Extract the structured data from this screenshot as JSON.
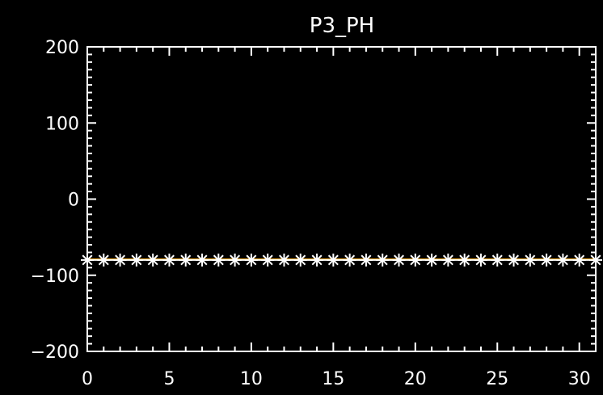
{
  "chart_data": {
    "type": "line",
    "title": "P3_PH",
    "xlabel": "",
    "ylabel": "",
    "xlim": [
      0,
      31
    ],
    "ylim": [
      -200,
      200
    ],
    "x_ticks": [
      0,
      5,
      10,
      15,
      20,
      25,
      30
    ],
    "x_tick_labels": [
      "0",
      "5",
      "10",
      "15",
      "20",
      "25",
      "30"
    ],
    "y_ticks": [
      -200,
      -100,
      0,
      100,
      200
    ],
    "y_tick_labels": [
      "−200",
      "−100",
      "0",
      "100",
      "200"
    ],
    "grid": false,
    "series": [
      {
        "marker": "asterisk",
        "color": "#ffffff",
        "x": [
          0,
          1,
          2,
          3,
          4,
          5,
          6,
          7,
          8,
          9,
          10,
          11,
          12,
          13,
          14,
          15,
          16,
          17,
          18,
          19,
          20,
          21,
          22,
          23,
          24,
          25,
          26,
          27,
          28,
          29,
          30,
          31
        ],
        "values": [
          -80,
          -80,
          -80,
          -80,
          -80,
          -80,
          -80,
          -80,
          -80,
          -80,
          -80,
          -80,
          -80,
          -80,
          -80,
          -80,
          -80,
          -80,
          -80,
          -80,
          -80,
          -80,
          -80,
          -80,
          -80,
          -80,
          -80,
          -80,
          -80,
          -80,
          -80,
          -80
        ]
      },
      {
        "marker": "none",
        "color": "#ffa500",
        "x": [
          0,
          31
        ],
        "values": [
          -79,
          -79
        ]
      }
    ],
    "colors": {
      "background": "#000000",
      "axes": "#ffffff",
      "reference_line": "#ffa500"
    }
  }
}
